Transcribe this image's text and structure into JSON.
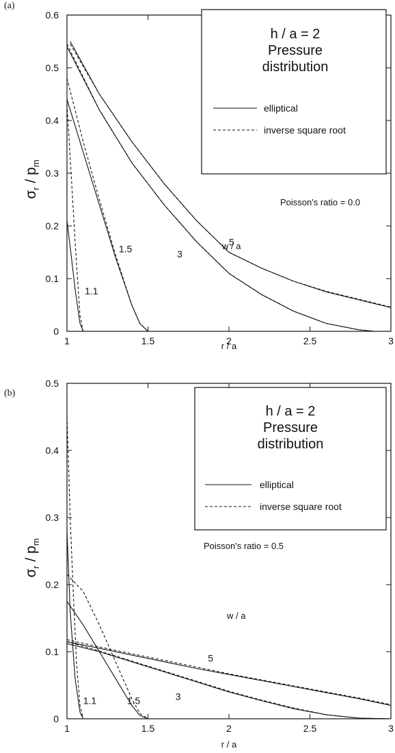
{
  "chart_data": [
    {
      "type": "line",
      "panel_label": "(a)",
      "xlabel": "r / a",
      "ylabel_main": "σ",
      "ylabel_sub_r": "r",
      "ylabel_slash": " / p",
      "ylabel_sub_m": "m",
      "xlim": [
        1,
        3
      ],
      "ylim": [
        0,
        0.6
      ],
      "xticks": [
        1,
        1.5,
        2,
        2.5,
        3
      ],
      "xtick_labels": [
        "1",
        "1.5",
        "2",
        "2.5",
        "3"
      ],
      "yticks": [
        0,
        0.1,
        0.2,
        0.3,
        0.4,
        0.5,
        0.6
      ],
      "ytick_labels": [
        "0",
        "0.1",
        "0.2",
        "0.3",
        "0.4",
        "0.5",
        "0.6"
      ],
      "legend": {
        "title_line1": "h / a = 2",
        "title_line2": "Pressure",
        "title_line3": "distribution",
        "entries": [
          {
            "label": "elliptical",
            "style": "solid"
          },
          {
            "label": "inverse square root",
            "style": "dashed"
          }
        ]
      },
      "annotation_poisson": "Poisson's ratio = 0.0",
      "annotation_wa": "w / a",
      "curve_labels": [
        {
          "text": "1.1",
          "x": 1.11,
          "y": 0.07
        },
        {
          "text": "1.5",
          "x": 1.32,
          "y": 0.15
        },
        {
          "text": "3",
          "x": 1.68,
          "y": 0.14
        },
        {
          "text": "5",
          "x": 2.0,
          "y": 0.163
        }
      ],
      "series": [
        {
          "wa": "1.1",
          "style": "solid",
          "x": [
            1.0,
            1.02,
            1.05,
            1.08,
            1.1
          ],
          "y": [
            0.21,
            0.16,
            0.08,
            0.015,
            0
          ]
        },
        {
          "wa": "1.1",
          "style": "dashed",
          "x": [
            1.0,
            1.02,
            1.05,
            1.08,
            1.1
          ],
          "y": [
            0.43,
            0.33,
            0.17,
            0.03,
            0
          ]
        },
        {
          "wa": "1.5",
          "style": "solid",
          "x": [
            1.0,
            1.1,
            1.2,
            1.3,
            1.4,
            1.45,
            1.5
          ],
          "y": [
            0.44,
            0.34,
            0.24,
            0.14,
            0.05,
            0.015,
            0
          ]
        },
        {
          "wa": "1.5",
          "style": "dashed",
          "x": [
            1.0,
            1.1,
            1.2,
            1.3,
            1.4,
            1.45,
            1.5
          ],
          "y": [
            0.48,
            0.36,
            0.25,
            0.145,
            0.05,
            0.015,
            0
          ]
        },
        {
          "wa": "3",
          "style": "solid",
          "x": [
            1.0,
            1.2,
            1.4,
            1.6,
            1.8,
            2.0,
            2.2,
            2.4,
            2.6,
            2.8,
            2.9,
            3.0
          ],
          "y": [
            0.54,
            0.42,
            0.32,
            0.24,
            0.17,
            0.11,
            0.07,
            0.038,
            0.015,
            0.003,
            0,
            0
          ]
        },
        {
          "wa": "3",
          "style": "dashed",
          "x": [
            1.0,
            1.2,
            1.4,
            1.6,
            1.8,
            2.0,
            2.2,
            2.4,
            2.6,
            2.8,
            2.9,
            3.0
          ],
          "y": [
            0.545,
            0.42,
            0.32,
            0.24,
            0.17,
            0.11,
            0.07,
            0.038,
            0.015,
            0.003,
            0,
            0
          ]
        },
        {
          "wa": "5",
          "style": "solid",
          "x": [
            1.02,
            1.2,
            1.4,
            1.6,
            1.8,
            2.0,
            2.2,
            2.4,
            2.6,
            2.8,
            3.0
          ],
          "y": [
            0.55,
            0.45,
            0.36,
            0.28,
            0.21,
            0.15,
            0.12,
            0.095,
            0.075,
            0.06,
            0.045
          ]
        },
        {
          "wa": "5",
          "style": "dashed",
          "x": [
            1.02,
            1.2,
            1.4,
            1.6,
            1.8,
            2.0,
            2.2,
            2.4,
            2.6,
            2.8,
            3.0
          ],
          "y": [
            0.545,
            0.45,
            0.36,
            0.28,
            0.21,
            0.15,
            0.12,
            0.095,
            0.076,
            0.061,
            0.046
          ]
        }
      ]
    },
    {
      "type": "line",
      "panel_label": "(b)",
      "xlabel": "r / a",
      "ylabel_main": "σ",
      "ylabel_sub_r": "r",
      "ylabel_slash": " / p",
      "ylabel_sub_m": "m",
      "xlim": [
        1,
        3
      ],
      "ylim": [
        0,
        0.5
      ],
      "xticks": [
        1,
        1.5,
        2,
        2.5,
        3
      ],
      "xtick_labels": [
        "1",
        "1.5",
        "2",
        "2.5",
        "3"
      ],
      "yticks": [
        0,
        0.1,
        0.2,
        0.3,
        0.4,
        0.5
      ],
      "ytick_labels": [
        "0",
        "0.1",
        "0.2",
        "0.3",
        "0.4",
        "0.5"
      ],
      "legend": {
        "title_line1": "h / a = 2",
        "title_line2": "Pressure",
        "title_line3": "distribution",
        "entries": [
          {
            "label": "elliptical",
            "style": "solid"
          },
          {
            "label": "inverse square root",
            "style": "dashed"
          }
        ]
      },
      "annotation_poisson": "Poisson's ratio = 0.5",
      "annotation_wa": "w / a",
      "curve_labels": [
        {
          "text": "1.1",
          "x": 1.1,
          "y": 0.022
        },
        {
          "text": "1.5",
          "x": 1.37,
          "y": 0.022
        },
        {
          "text": "3",
          "x": 1.67,
          "y": 0.028
        },
        {
          "text": "5",
          "x": 1.87,
          "y": 0.085
        }
      ],
      "series": [
        {
          "wa": "1.1",
          "style": "solid",
          "x": [
            1.0,
            1.02,
            1.05,
            1.08,
            1.1
          ],
          "y": [
            0.28,
            0.16,
            0.06,
            0.01,
            0
          ]
        },
        {
          "wa": "1.1",
          "style": "dashed",
          "x": [
            1.0,
            1.02,
            1.04,
            1.06,
            1.08,
            1.1
          ],
          "y": [
            0.45,
            0.3,
            0.18,
            0.08,
            0.02,
            0
          ]
        },
        {
          "wa": "1.5",
          "style": "solid",
          "x": [
            1.0,
            1.1,
            1.2,
            1.3,
            1.4,
            1.45,
            1.5
          ],
          "y": [
            0.175,
            0.14,
            0.1,
            0.06,
            0.02,
            0.005,
            0
          ]
        },
        {
          "wa": "1.5",
          "style": "dashed",
          "x": [
            1.0,
            1.1,
            1.2,
            1.3,
            1.4,
            1.45,
            1.5
          ],
          "y": [
            0.215,
            0.19,
            0.14,
            0.085,
            0.03,
            0.008,
            0
          ]
        },
        {
          "wa": "3",
          "style": "solid",
          "x": [
            1.0,
            1.2,
            1.4,
            1.6,
            1.8,
            2.0,
            2.2,
            2.4,
            2.6,
            2.8,
            3.0
          ],
          "y": [
            0.112,
            0.1,
            0.085,
            0.07,
            0.055,
            0.04,
            0.027,
            0.015,
            0.006,
            0.001,
            0
          ]
        },
        {
          "wa": "3",
          "style": "dashed",
          "x": [
            1.0,
            1.2,
            1.4,
            1.6,
            1.8,
            2.0,
            2.2,
            2.4,
            2.6,
            2.8,
            3.0
          ],
          "y": [
            0.115,
            0.101,
            0.086,
            0.071,
            0.056,
            0.041,
            0.028,
            0.016,
            0.006,
            0.001,
            0
          ]
        },
        {
          "wa": "5",
          "style": "solid",
          "x": [
            1.0,
            1.2,
            1.4,
            1.6,
            1.8,
            2.0,
            2.2,
            2.4,
            2.6,
            2.8,
            3.0
          ],
          "y": [
            0.115,
            0.105,
            0.095,
            0.085,
            0.075,
            0.066,
            0.057,
            0.048,
            0.039,
            0.03,
            0.02
          ]
        },
        {
          "wa": "5",
          "style": "dashed",
          "x": [
            1.0,
            1.2,
            1.4,
            1.6,
            1.8,
            2.0,
            2.2,
            2.4,
            2.6,
            2.8,
            3.0
          ],
          "y": [
            0.118,
            0.107,
            0.097,
            0.087,
            0.077,
            0.067,
            0.058,
            0.049,
            0.04,
            0.031,
            0.021
          ]
        }
      ]
    }
  ]
}
